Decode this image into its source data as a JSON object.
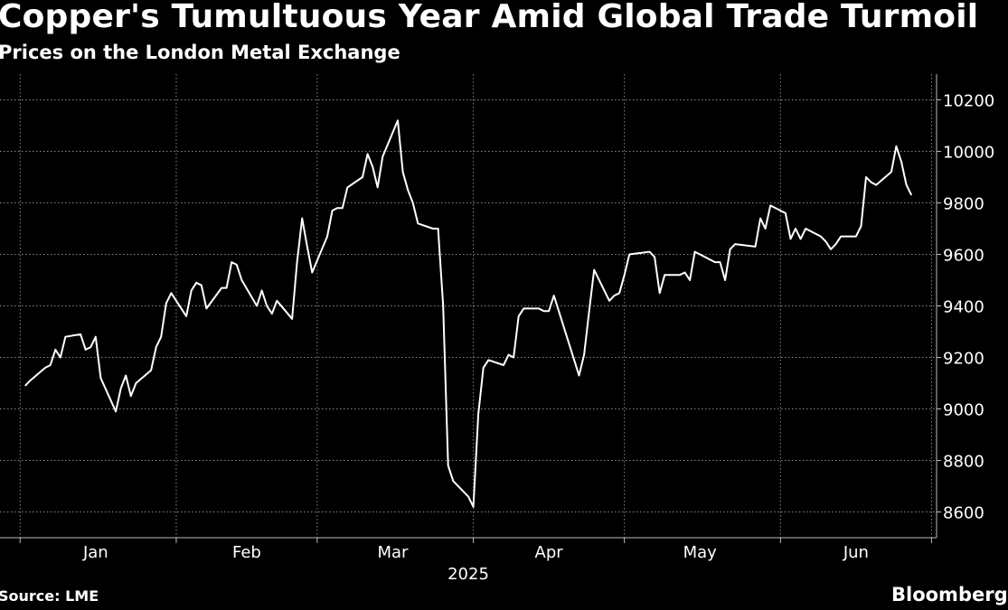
{
  "header": {
    "title": "Copper's Tumultuous Year Amid Global Trade Turmoil",
    "subtitle": "Prices on the London Metal Exchange"
  },
  "footer": {
    "source": "Source: LME",
    "brand": "Bloomberg"
  },
  "colors": {
    "background": "#000000",
    "line": "#ffffff",
    "grid": "#888888"
  },
  "chart_data": {
    "type": "line",
    "title": "Copper's Tumultuous Year Amid Global Trade Turmoil",
    "subtitle": "Prices on the London Metal Exchange",
    "xlabel": "2025",
    "ylabel": "",
    "ylim": [
      8500,
      10300
    ],
    "yticks": [
      8600,
      8800,
      9000,
      9200,
      9400,
      9600,
      9800,
      10000,
      10200
    ],
    "ytick_labels": [
      "8600",
      "8800",
      "9000",
      "9200",
      "9400",
      "9600",
      "9800",
      "10000",
      "10200"
    ],
    "months": [
      "Jan",
      "Feb",
      "Mar",
      "Apr",
      "May",
      "Jun"
    ],
    "grid": true,
    "series": [
      {
        "name": "",
        "x": [
          "2025-01-02",
          "2025-01-03",
          "2025-01-06",
          "2025-01-07",
          "2025-01-08",
          "2025-01-09",
          "2025-01-10",
          "2025-01-13",
          "2025-01-14",
          "2025-01-15",
          "2025-01-16",
          "2025-01-17",
          "2025-01-20",
          "2025-01-21",
          "2025-01-22",
          "2025-01-23",
          "2025-01-24",
          "2025-01-27",
          "2025-01-28",
          "2025-01-29",
          "2025-01-30",
          "2025-01-31",
          "2025-02-03",
          "2025-02-04",
          "2025-02-05",
          "2025-02-06",
          "2025-02-07",
          "2025-02-10",
          "2025-02-11",
          "2025-02-12",
          "2025-02-13",
          "2025-02-14",
          "2025-02-17",
          "2025-02-18",
          "2025-02-19",
          "2025-02-20",
          "2025-02-21",
          "2025-02-24",
          "2025-02-25",
          "2025-02-26",
          "2025-02-27",
          "2025-02-28",
          "2025-03-03",
          "2025-03-04",
          "2025-03-05",
          "2025-03-06",
          "2025-03-07",
          "2025-03-10",
          "2025-03-11",
          "2025-03-12",
          "2025-03-13",
          "2025-03-14",
          "2025-03-17",
          "2025-03-18",
          "2025-03-19",
          "2025-03-20",
          "2025-03-21",
          "2025-03-24",
          "2025-03-25",
          "2025-03-26",
          "2025-03-27",
          "2025-03-28",
          "2025-03-31",
          "2025-04-01",
          "2025-04-02",
          "2025-04-03",
          "2025-04-04",
          "2025-04-07",
          "2025-04-08",
          "2025-04-09",
          "2025-04-10",
          "2025-04-11",
          "2025-04-14",
          "2025-04-15",
          "2025-04-16",
          "2025-04-17",
          "2025-04-22",
          "2025-04-23",
          "2025-04-24",
          "2025-04-25",
          "2025-04-28",
          "2025-04-29",
          "2025-04-30",
          "2025-05-01",
          "2025-05-02",
          "2025-05-06",
          "2025-05-07",
          "2025-05-08",
          "2025-05-09",
          "2025-05-12",
          "2025-05-13",
          "2025-05-14",
          "2025-05-15",
          "2025-05-16",
          "2025-05-19",
          "2025-05-20",
          "2025-05-21",
          "2025-05-22",
          "2025-05-23",
          "2025-05-27",
          "2025-05-28",
          "2025-05-29",
          "2025-05-30",
          "2025-06-02",
          "2025-06-03",
          "2025-06-04",
          "2025-06-05",
          "2025-06-06",
          "2025-06-09",
          "2025-06-10",
          "2025-06-11",
          "2025-06-12",
          "2025-06-13",
          "2025-06-16",
          "2025-06-17",
          "2025-06-18",
          "2025-06-19",
          "2025-06-20",
          "2025-06-23",
          "2025-06-24",
          "2025-06-25",
          "2025-06-26",
          "2025-06-27"
        ],
        "values": [
          9090,
          9110,
          9160,
          9170,
          9230,
          9200,
          9280,
          9290,
          9230,
          9240,
          9280,
          9120,
          8990,
          9080,
          9130,
          9050,
          9100,
          9150,
          9240,
          9280,
          9410,
          9450,
          9360,
          9460,
          9490,
          9480,
          9390,
          9470,
          9470,
          9570,
          9560,
          9500,
          9400,
          9460,
          9400,
          9370,
          9420,
          9350,
          9570,
          9740,
          9630,
          9530,
          9670,
          9770,
          9780,
          9780,
          9860,
          9900,
          9990,
          9940,
          9860,
          9980,
          10120,
          9920,
          9850,
          9800,
          9720,
          9700,
          9700,
          9400,
          8780,
          8720,
          8660,
          8620,
          8980,
          9160,
          9190,
          9170,
          9210,
          9200,
          9360,
          9390,
          9390,
          9380,
          9380,
          9440,
          9130,
          9210,
          9380,
          9540,
          9420,
          9440,
          9450,
          9520,
          9600,
          9610,
          9590,
          9450,
          9520,
          9520,
          9530,
          9500,
          9610,
          9600,
          9570,
          9570,
          9500,
          9620,
          9640,
          9630,
          9740,
          9700,
          9790,
          9760,
          9660,
          9700,
          9660,
          9700,
          9670,
          9650,
          9620,
          9640,
          9670,
          9670,
          9710,
          9900,
          9880,
          9870,
          9920,
          10020,
          9960,
          9870,
          9830
        ]
      }
    ]
  }
}
